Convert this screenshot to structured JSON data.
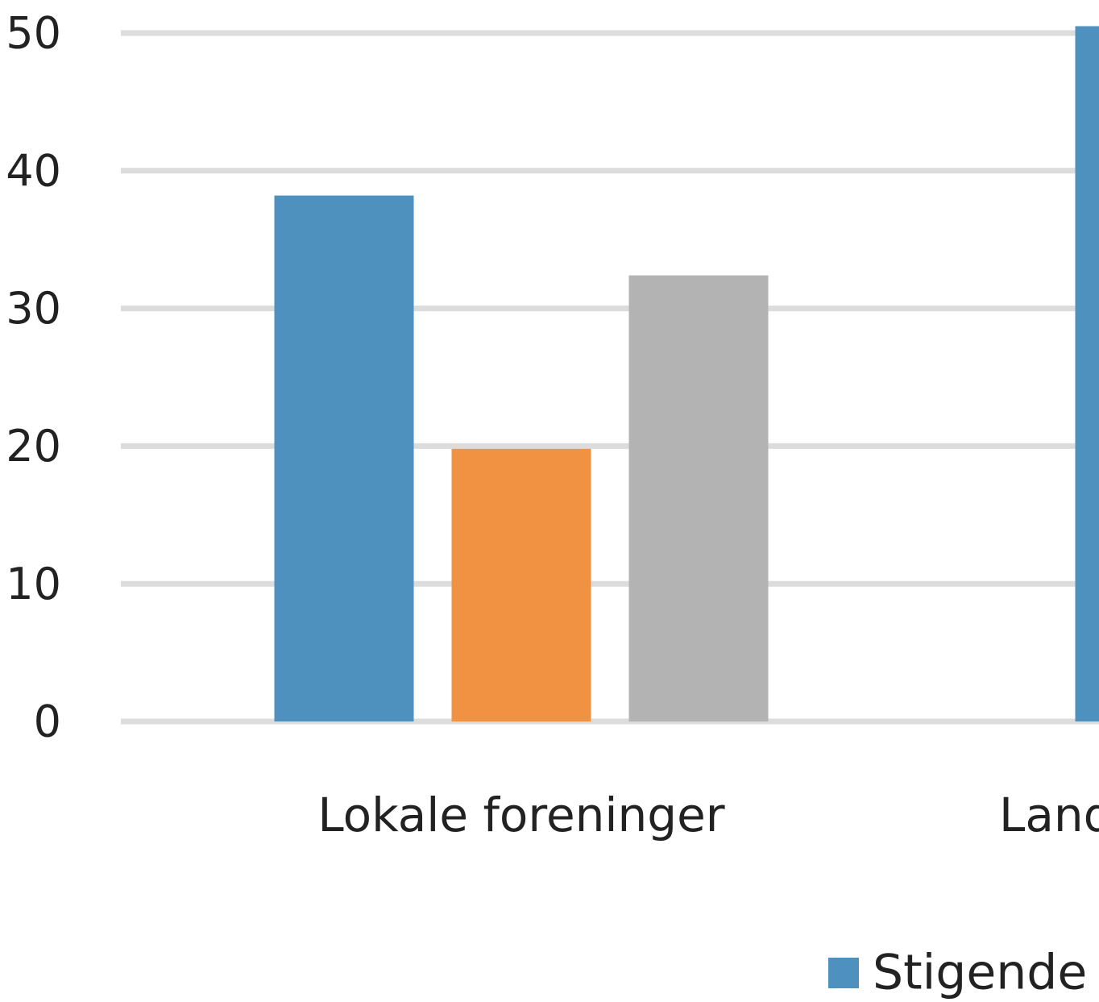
{
  "chart_data": {
    "type": "bar",
    "categories": [
      "Lokale foreninger",
      "Land"
    ],
    "series": [
      {
        "name": "Stigende",
        "color": "#4e91bf",
        "values": [
          38.2,
          50.5
        ]
      },
      {
        "color": "#f09242",
        "values": [
          19.8,
          null
        ]
      },
      {
        "color": "#b3b3b3",
        "values": [
          32.4,
          null
        ]
      }
    ],
    "ylim": [
      0,
      50
    ],
    "yticks": [
      0,
      10,
      20,
      30,
      40,
      50
    ],
    "grid": true
  }
}
